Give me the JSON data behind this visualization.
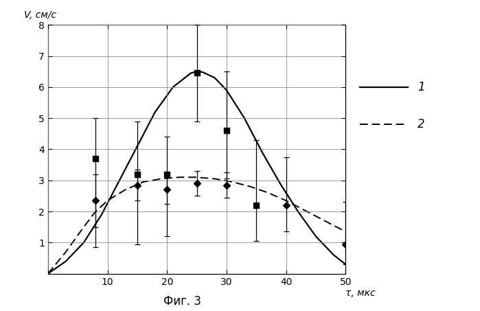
{
  "xlabel": "τ, мкс",
  "ylabel": "V, см/с",
  "xlim": [
    0,
    50
  ],
  "ylim": [
    0,
    8
  ],
  "xticks": [
    0,
    10,
    20,
    30,
    40,
    50
  ],
  "yticks": [
    1,
    2,
    3,
    4,
    5,
    6,
    7,
    8
  ],
  "caption": "Фиг. 3",
  "curve1_x": [
    0,
    3,
    6,
    9,
    12,
    15,
    18,
    21,
    24,
    25,
    26,
    28,
    30,
    33,
    36,
    39,
    42,
    45,
    48,
    50
  ],
  "curve1_y": [
    0,
    0.4,
    1.0,
    1.9,
    3.0,
    4.1,
    5.2,
    6.0,
    6.45,
    6.5,
    6.48,
    6.3,
    5.9,
    5.0,
    3.9,
    2.9,
    2.0,
    1.2,
    0.6,
    0.3
  ],
  "curve2_x": [
    0,
    3,
    6,
    8,
    10,
    13,
    16,
    19,
    22,
    25,
    28,
    31,
    34,
    37,
    40,
    43,
    46,
    49,
    50
  ],
  "curve2_y": [
    0,
    0.7,
    1.5,
    2.0,
    2.35,
    2.7,
    2.95,
    3.05,
    3.1,
    3.1,
    3.05,
    2.95,
    2.8,
    2.6,
    2.35,
    2.05,
    1.75,
    1.45,
    1.35
  ],
  "markers1_x": [
    8,
    15,
    20,
    25,
    30,
    35
  ],
  "markers1_y": [
    3.7,
    3.2,
    3.2,
    6.45,
    4.6,
    2.2
  ],
  "markers1_yerr_pos": [
    1.3,
    1.7,
    1.2,
    1.55,
    1.9,
    2.1
  ],
  "markers1_yerr_neg": [
    2.85,
    2.25,
    2.0,
    1.55,
    1.55,
    1.15
  ],
  "markers2_x": [
    8,
    15,
    20,
    25,
    30,
    40,
    50
  ],
  "markers2_y": [
    2.35,
    2.85,
    2.7,
    2.9,
    2.85,
    2.2,
    0.95
  ],
  "markers2_yerr_pos": [
    0.85,
    0.5,
    0.45,
    0.4,
    0.4,
    1.55,
    1.35
  ],
  "markers2_yerr_neg": [
    0.85,
    0.5,
    0.45,
    0.4,
    0.4,
    0.85,
    0.65
  ],
  "line_color": "#000000",
  "marker_color": "#000000",
  "background_color": "#ffffff",
  "grid_color": "#888888"
}
